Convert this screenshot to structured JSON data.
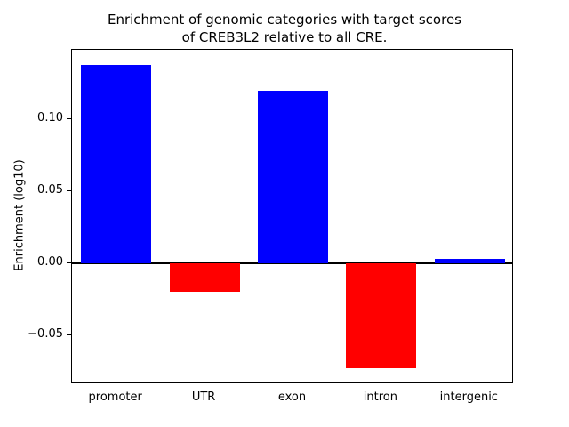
{
  "figure": {
    "title": "Enrichment of genomic categories with target scores\nof CREB3L2 relative to all CRE."
  },
  "chart_data": {
    "type": "bar",
    "title": "Enrichment of genomic categories with target scores of CREB3L2 relative to all CRE.",
    "categories": [
      "promoter",
      "UTR",
      "exon",
      "intron",
      "intergenic"
    ],
    "values": [
      0.138,
      -0.02,
      0.12,
      -0.073,
      0.003
    ],
    "xlabel": "",
    "ylabel": "Enrichment (log10)",
    "ylim": [
      -0.0836,
      0.1486
    ],
    "yticks": [
      -0.05,
      0.0,
      0.05,
      0.1
    ],
    "ytick_labels": [
      "−0.05",
      "0.00",
      "0.05",
      "0.10"
    ],
    "colors": {
      "positive": "#0000ff",
      "negative": "#ff0000"
    },
    "grid": false,
    "legend": null,
    "zero_line": true
  }
}
